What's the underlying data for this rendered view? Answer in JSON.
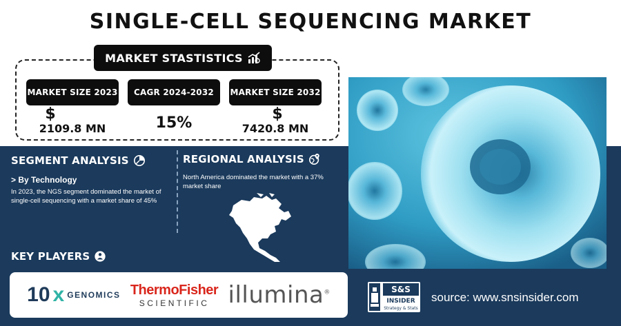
{
  "title": "SINGLE-CELL SEQUENCING MARKET",
  "stats": {
    "header": "MARKET STASTISTICS",
    "header_icon": "chart-growth-icon",
    "items": [
      {
        "label": "MARKET SIZE 2023",
        "symbol": "$",
        "value": "2109.8 MN"
      },
      {
        "label": "CAGR 2024-2032",
        "symbol": "",
        "value": "15%"
      },
      {
        "label": "MARKET SIZE 2032",
        "symbol": "$",
        "value": "7420.8 MN"
      }
    ]
  },
  "segment": {
    "title": "SEGMENT ANALYSIS",
    "icon": "pie-chart-icon",
    "subtitle": "> By Technology",
    "text": "In 2023, the NGS segment dominated the market of single-cell sequencing with a market share of 45%"
  },
  "regional": {
    "title": "REGIONAL ANALYSIS",
    "icon": "globe-pin-icon",
    "text": "North America dominated the market with a 37% market share",
    "map_icon": "north-america-map-icon"
  },
  "key_players": {
    "title": "KEY PLAYERS",
    "icon": "person-coin-icon",
    "logos": {
      "tenx_big": "10",
      "tenx_x": "x",
      "tenx_small": "GENOMICS",
      "thermo_top": "ThermoFisher",
      "thermo_bottom": "SCIENTIFIC",
      "illumina": "illumina",
      "illumina_mark": "®"
    }
  },
  "brand": {
    "top": "S&S",
    "mid": "INSIDER",
    "tagline": "Strategy & Stats"
  },
  "source": "source: www.snsinsider.com",
  "colors": {
    "navy": "#1b3a5c",
    "black": "#0d0d0d",
    "cell": "#5fc6e3",
    "thermo_red": "#d9261c",
    "tenx_teal": "#2fb3a6"
  }
}
